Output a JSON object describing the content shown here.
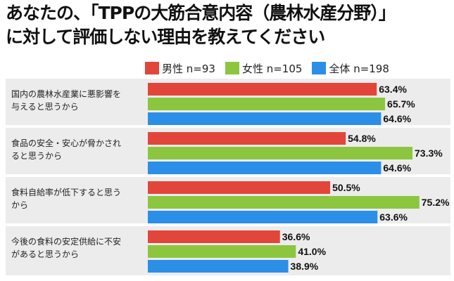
{
  "title_line1": "あなたの、「TPPの大筋合意内容（農林水産分野）」",
  "title_line2": "に対して評価しない理由を教えてください",
  "chart_data": {
    "type": "bar",
    "orientation": "horizontal",
    "categories": [
      "国内の農林水産業に悪影響を与えると思うから",
      "食品の安全・安心が脅かされると思うから",
      "食料自給率が低下すると思うから",
      "今後の食料の安定供給に不安があると思うから"
    ],
    "category_lines": [
      [
        "国内の農林水産業に悪影響を",
        "与えると思うから"
      ],
      [
        "食品の安全・安心が脅かされ",
        "ると思うから"
      ],
      [
        "食料自給率が低下すると思う",
        "から"
      ],
      [
        "今後の食料の安定供給に不安",
        "があると思うから"
      ]
    ],
    "series": [
      {
        "name": "男性 n=93",
        "color": "#e2463a",
        "values": [
          63.4,
          54.8,
          50.5,
          36.6
        ],
        "labels": [
          "63.4%",
          "54.8%",
          "50.5%",
          "36.6%"
        ]
      },
      {
        "name": "女性 n=105",
        "color": "#8cc63f",
        "values": [
          65.7,
          73.3,
          75.2,
          41.0
        ],
        "labels": [
          "65.7%",
          "73.3%",
          "75.2%",
          "41.0%"
        ]
      },
      {
        "name": "全体 n=198",
        "color": "#2b8fe8",
        "values": [
          64.6,
          64.6,
          63.6,
          38.9
        ],
        "labels": [
          "64.6%",
          "64.6%",
          "63.6%",
          "38.9%"
        ]
      }
    ],
    "xlim": [
      0,
      100
    ],
    "grid": false,
    "legend": "top"
  }
}
